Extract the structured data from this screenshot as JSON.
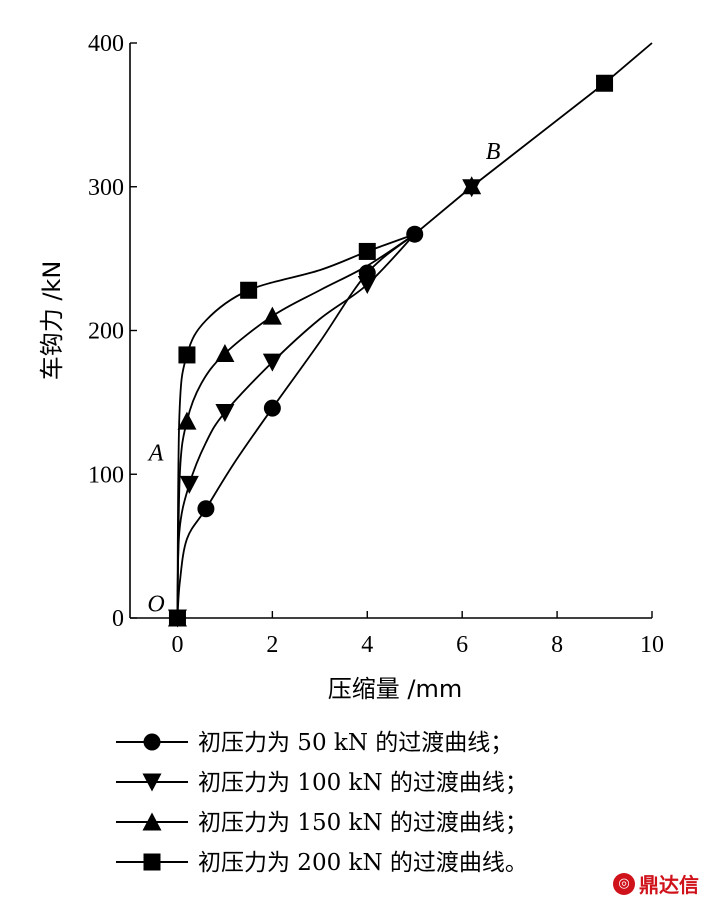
{
  "chart_data": {
    "type": "line",
    "xlabel": "压缩量 /mm",
    "ylabel": "车钩力 /kN",
    "xlim": [
      -1,
      10
    ],
    "ylim": [
      0,
      400
    ],
    "xticks": [
      0,
      2,
      4,
      6,
      8,
      10
    ],
    "yticks": [
      0,
      100,
      200,
      300,
      400
    ],
    "xtick_labels": [
      "0",
      "2",
      "4",
      "6",
      "8",
      "10"
    ],
    "ytick_labels": [
      "0",
      "100",
      "200",
      "300",
      "400"
    ],
    "grid": false,
    "legend_position": "bottom",
    "series": [
      {
        "name": "初压力为 50 kN 的过渡曲线；",
        "marker": "circle",
        "x": [
          0,
          0.05,
          0.2,
          0.6,
          1.2,
          2.0,
          3.0,
          4.0,
          5.0
        ],
        "y": [
          0,
          25,
          55,
          76,
          108,
          146,
          192,
          240,
          267
        ],
        "marked": [
          0,
          3,
          5,
          7,
          8
        ]
      },
      {
        "name": "初压力为 100 kN 的过渡曲线；",
        "marker": "triangle-down",
        "x": [
          0,
          0.04,
          0.25,
          0.6,
          1.0,
          2.0,
          3.0,
          4.0,
          5.0
        ],
        "y": [
          0,
          60,
          93,
          122,
          143,
          178,
          208,
          232,
          267
        ],
        "marked": [
          0,
          2,
          4,
          5,
          7
        ]
      },
      {
        "name": "初压力为 150 kN 的过渡曲线；",
        "marker": "triangle-up",
        "x": [
          0,
          0.05,
          0.2,
          0.5,
          1.0,
          2.0,
          3.0,
          4.0,
          5.0
        ],
        "y": [
          0,
          100,
          137,
          163,
          184,
          210,
          228,
          245,
          267
        ],
        "marked": [
          0,
          2,
          4,
          5
        ]
      },
      {
        "name": "初压力为 200 kN 的过渡曲线。",
        "marker": "square",
        "x": [
          0,
          0.04,
          0.2,
          0.6,
          1.5,
          3.0,
          4.0,
          5.0
        ],
        "y": [
          0,
          140,
          183,
          207,
          228,
          242,
          255,
          267
        ],
        "marked": [
          0,
          2,
          4,
          6
        ]
      }
    ],
    "common_line": {
      "x": [
        5.0,
        6.2,
        9.0,
        10.0
      ],
      "y": [
        267,
        300,
        372,
        400
      ],
      "star_point": [
        6.2,
        300
      ],
      "square_point": [
        9.0,
        372
      ]
    },
    "annotations": [
      {
        "text": "A",
        "x": -0.45,
        "y": 115
      },
      {
        "text": "B",
        "x": 6.65,
        "y": 325
      },
      {
        "text": "O",
        "x": -0.45,
        "y": 10
      }
    ]
  },
  "watermark": {
    "text": "鼎达信"
  }
}
